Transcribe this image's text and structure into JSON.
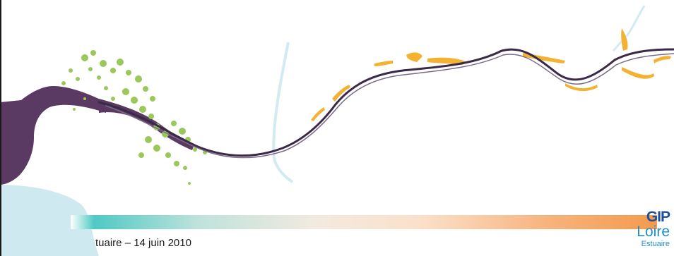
{
  "footer": {
    "text": "tuaire – 14 juin 2010"
  },
  "logo": {
    "line1": "GIP",
    "line2": "Loire",
    "line3": "Estuaire"
  },
  "colors": {
    "estuary": "#5a3a63",
    "sea": "#cfe9f1",
    "tributary": "#d2ebf3",
    "vegetation": "#9bc85a",
    "wetland": "#f4b233",
    "river_line": "#3a2a48"
  }
}
